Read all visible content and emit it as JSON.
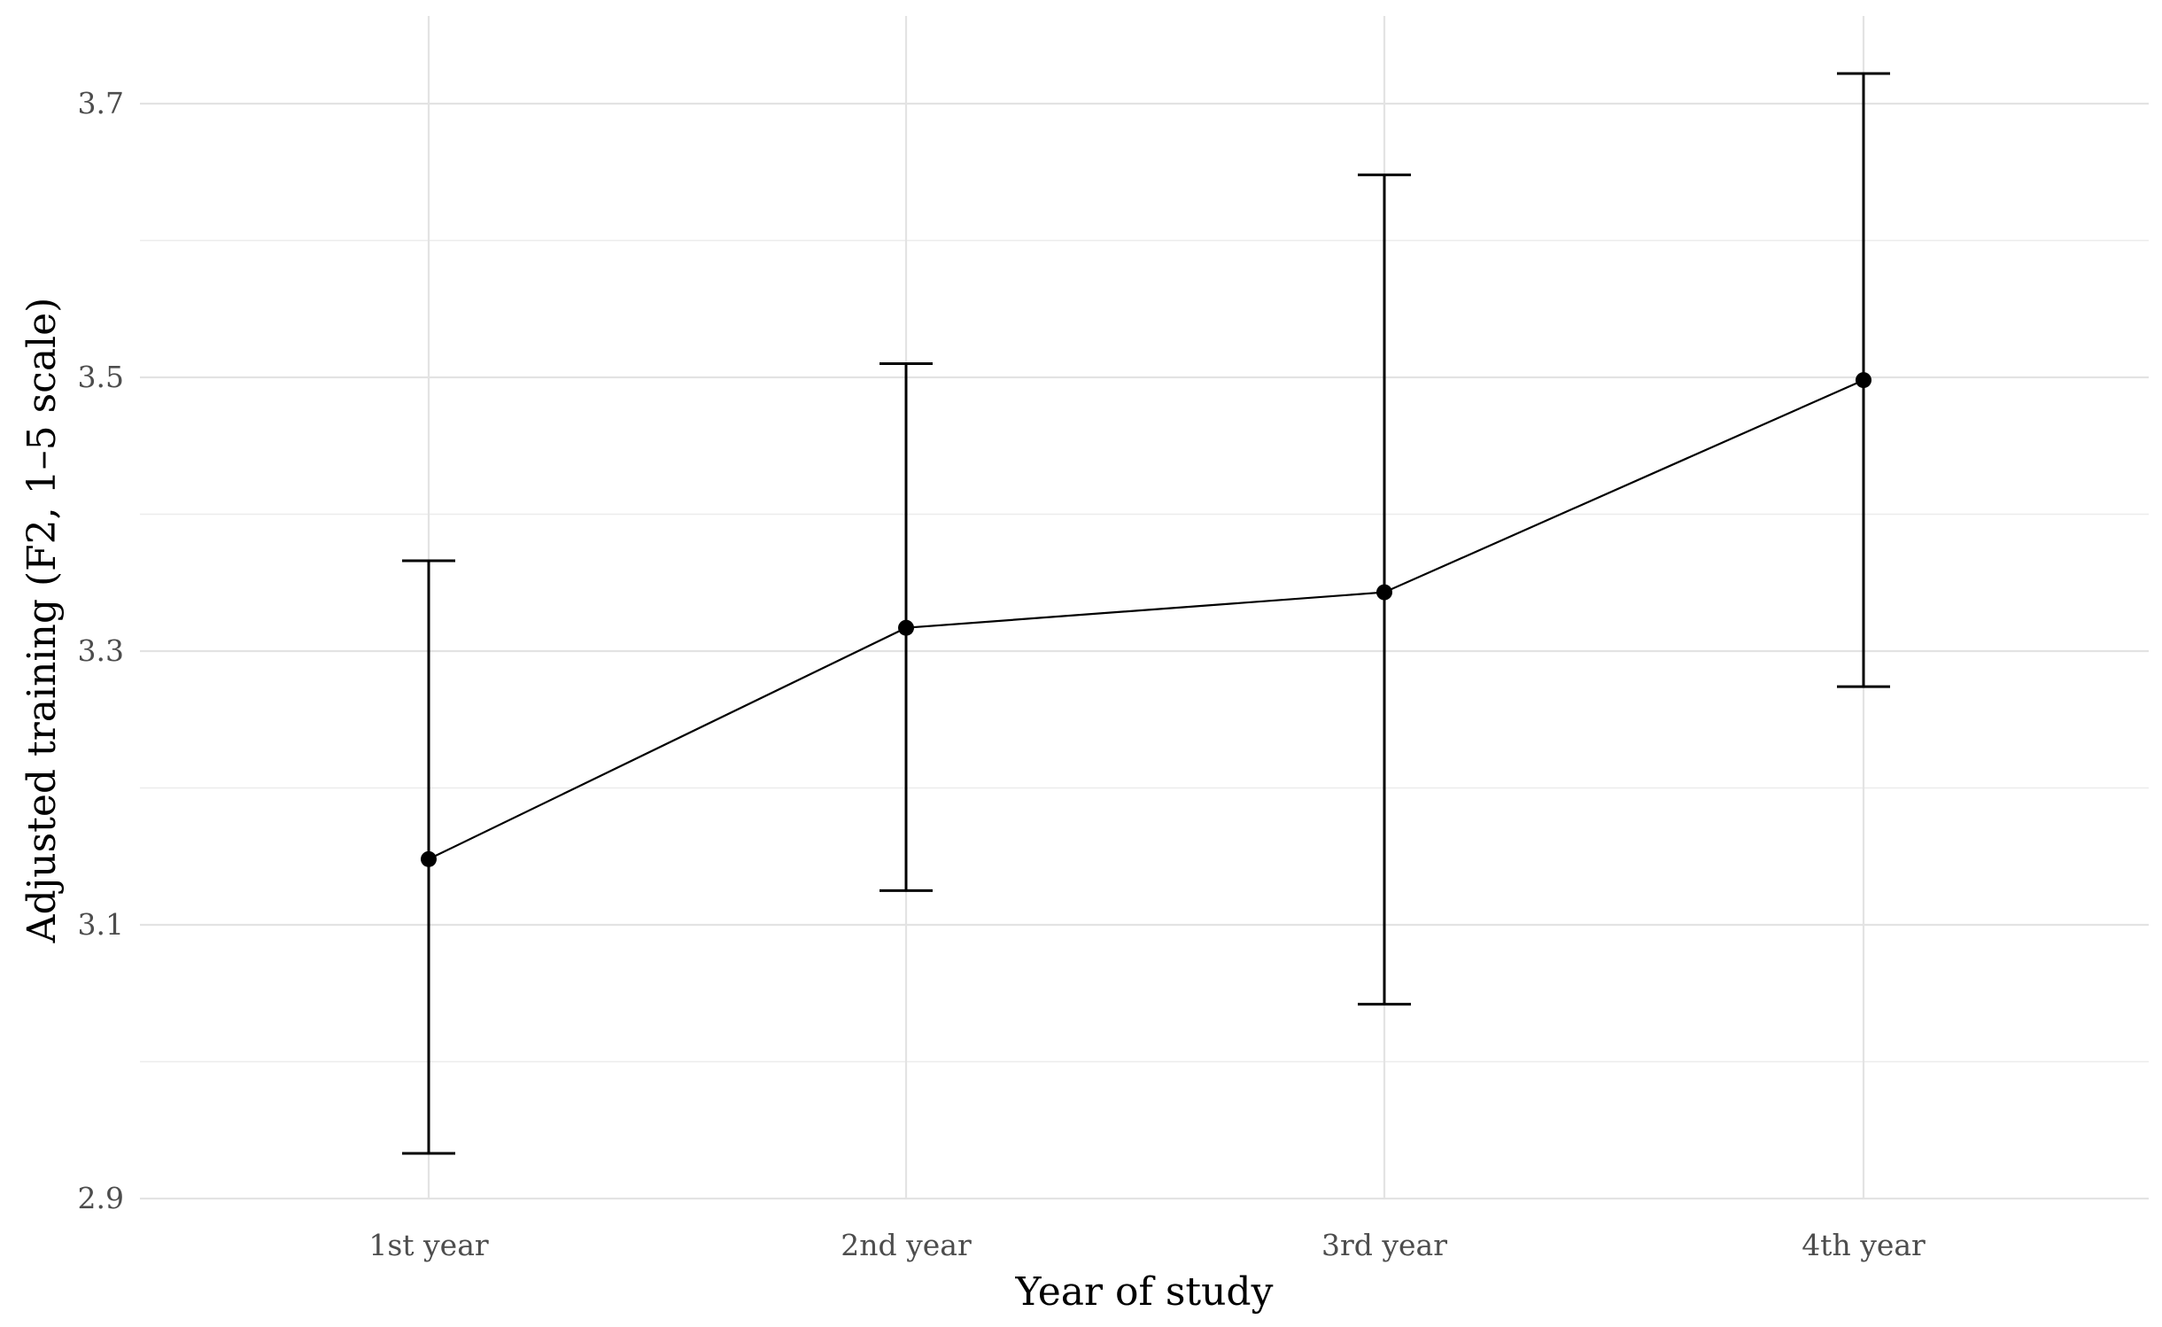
{
  "chart_data": {
    "type": "line",
    "categories": [
      "1st year",
      "2nd year",
      "3rd year",
      "4th year"
    ],
    "series": [
      {
        "values": [
          3.148,
          3.317,
          3.343,
          3.498
        ],
        "lower": [
          2.933,
          3.125,
          3.042,
          3.274
        ],
        "upper": [
          3.366,
          3.51,
          3.648,
          3.722
        ]
      }
    ],
    "xlabel": "Year of study",
    "ylabel": "Adjusted training (F2, 1–5 scale)",
    "ylim": [
      2.9,
      3.725
    ],
    "y_ticks": [
      "2.9",
      "3.1",
      "3.3",
      "3.5",
      "3.7"
    ],
    "y_minor_ticks": [
      3.0,
      3.2,
      3.4,
      3.6
    ],
    "grid": true,
    "legend": "none"
  }
}
